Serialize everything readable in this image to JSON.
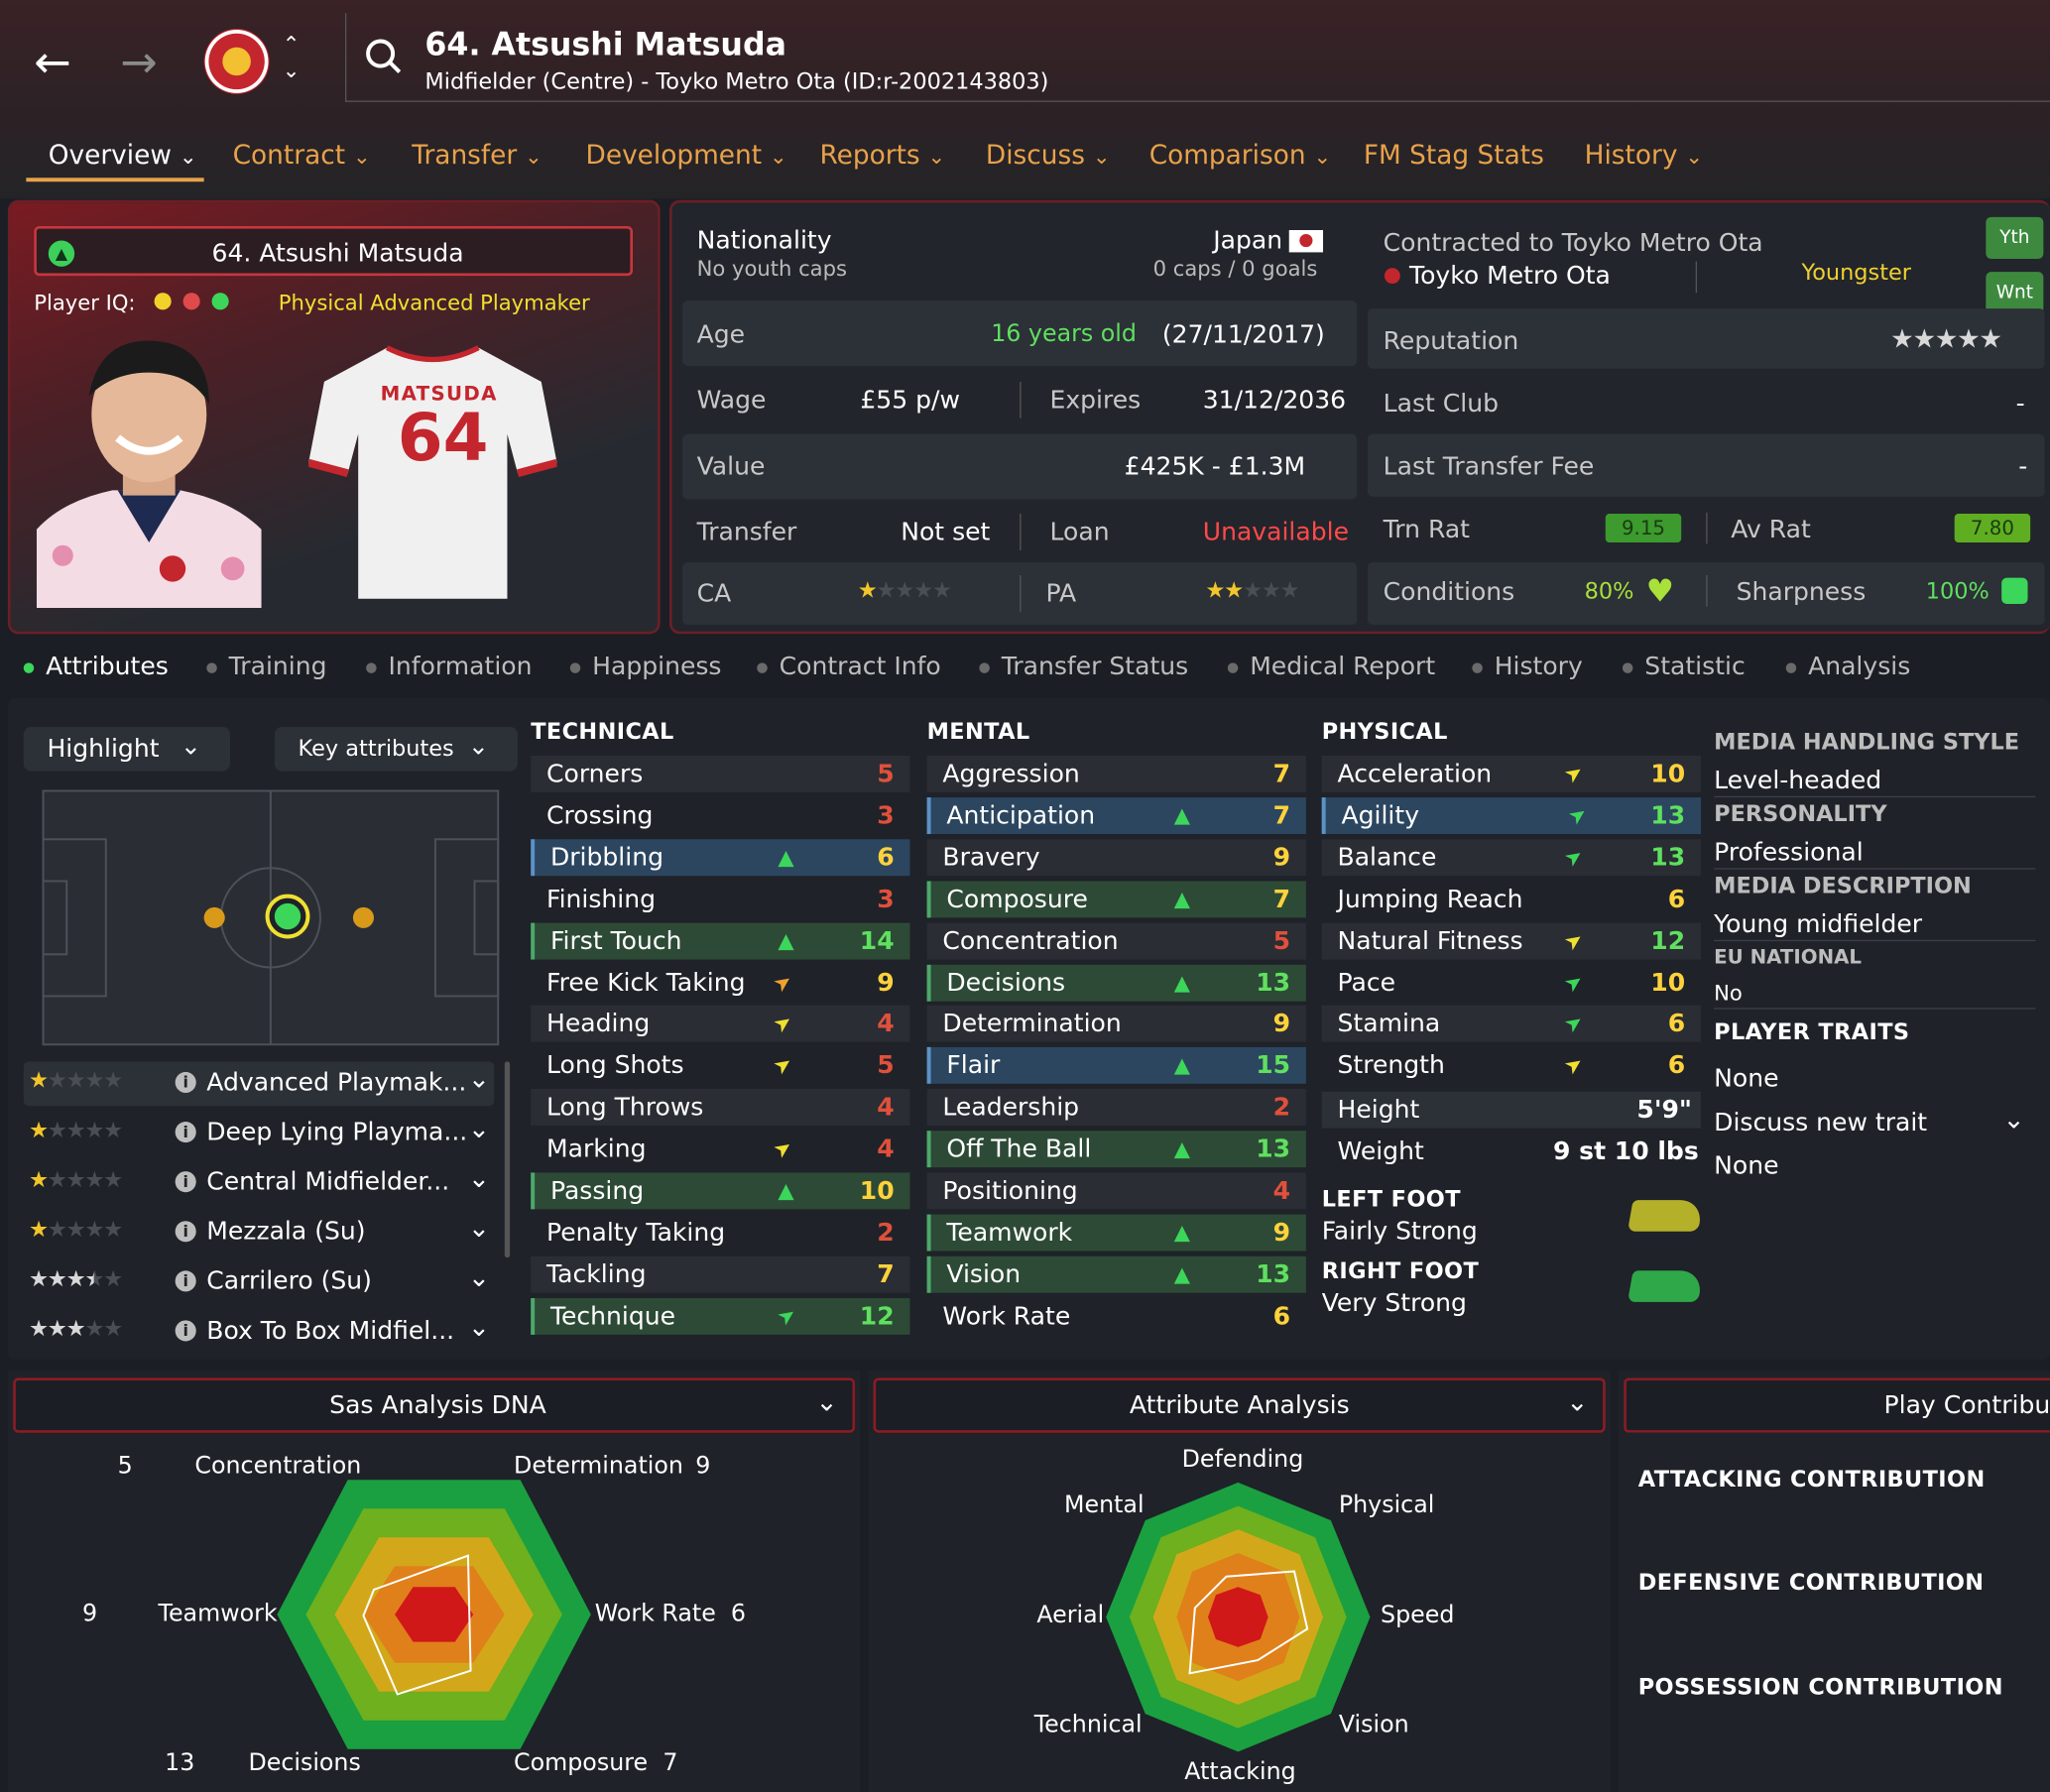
{
  "header": {
    "title": "64. Atsushi Matsuda",
    "subtitle": "Midfielder (Centre) - Toyko Metro Ota (ID:r-2002143803)"
  },
  "nav": {
    "tabs": [
      "Overview",
      "Contract",
      "Transfer",
      "Development",
      "Reports",
      "Discuss",
      "Comparison",
      "FM Stag Stats",
      "History"
    ]
  },
  "card": {
    "name": "64. Atsushi Matsuda",
    "player_iq_label": "Player IQ:",
    "role": "Physical Advanced Playmaker",
    "shirt_name": "MATSUDA",
    "shirt_number": "64"
  },
  "info": {
    "nationality_label": "Nationality",
    "nationality": "Japan",
    "youth_caps": "No youth caps",
    "caps": "0 caps / 0 goals",
    "age_label": "Age",
    "age": "16 years old",
    "dob": "(27/11/2017)",
    "wage_label": "Wage",
    "wage": "£55 p/w",
    "expires_label": "Expires",
    "expires": "31/12/2036",
    "value_label": "Value",
    "value": "£425K - £1.3M",
    "transfer_label": "Transfer",
    "transfer": "Not set",
    "loan_label": "Loan",
    "loan": "Unavailable",
    "ca_label": "CA",
    "pa_label": "PA",
    "ca_stars": 1,
    "pa_stars": 2
  },
  "club": {
    "contracted": "Contracted to Toyko Metro Ota",
    "club": "Toyko Metro Ota",
    "status": "Youngster",
    "badge_yth": "Yth",
    "badge_wnt": "Wnt",
    "reputation_label": "Reputation",
    "reputation_stars": 5,
    "last_club_label": "Last Club",
    "last_club": "-",
    "last_fee_label": "Last Transfer Fee",
    "last_fee": "-",
    "trn_rat_label": "Trn Rat",
    "trn_rat": "9.15",
    "av_rat_label": "Av Rat",
    "av_rat": "7.80",
    "conditions_label": "Conditions",
    "conditions": "80%",
    "sharpness_label": "Sharpness",
    "sharpness": "100%"
  },
  "subtabs": [
    "Attributes",
    "Training",
    "Information",
    "Happiness",
    "Contract Info",
    "Transfer Status",
    "Medical Report",
    "History",
    "Statistic",
    "Analysis"
  ],
  "controls": {
    "highlight": "Highlight",
    "key_attributes": "Key attributes"
  },
  "roles": [
    {
      "name": "Advanced Playmak...",
      "stars": 1
    },
    {
      "name": "Deep Lying Playma...",
      "stars": 1
    },
    {
      "name": "Central Midfielder...",
      "stars": 1
    },
    {
      "name": "Mezzala (Su)",
      "stars": 1
    },
    {
      "name": "Carrilero (Su)",
      "stars": 3.5
    },
    {
      "name": "Box To Box Midfiel...",
      "stars": 3
    }
  ],
  "technical": {
    "title": "TECHNICAL",
    "items": [
      {
        "n": "Corners",
        "v": "5",
        "c": "#e0503c",
        "h": ""
      },
      {
        "n": "Crossing",
        "v": "3",
        "c": "#e0503c",
        "h": ""
      },
      {
        "n": "Dribbling",
        "v": "6",
        "c": "#ffd23c",
        "h": "b",
        "a": "up"
      },
      {
        "n": "Finishing",
        "v": "3",
        "c": "#e0503c",
        "h": ""
      },
      {
        "n": "First Touch",
        "v": "14",
        "c": "#5fe05f",
        "h": "k",
        "a": "up"
      },
      {
        "n": "Free Kick Taking",
        "v": "9",
        "c": "#ffd23c",
        "h": "",
        "a": "ur-o"
      },
      {
        "n": "Heading",
        "v": "4",
        "c": "#e0503c",
        "h": "",
        "a": "ur-y"
      },
      {
        "n": "Long Shots",
        "v": "5",
        "c": "#e0503c",
        "h": "",
        "a": "ur-y"
      },
      {
        "n": "Long Throws",
        "v": "4",
        "c": "#e0503c",
        "h": ""
      },
      {
        "n": "Marking",
        "v": "4",
        "c": "#e0503c",
        "h": "",
        "a": "ur-y"
      },
      {
        "n": "Passing",
        "v": "10",
        "c": "#ffd23c",
        "h": "k",
        "a": "up"
      },
      {
        "n": "Penalty Taking",
        "v": "2",
        "c": "#e0503c",
        "h": ""
      },
      {
        "n": "Tackling",
        "v": "7",
        "c": "#ffd23c",
        "h": ""
      },
      {
        "n": "Technique",
        "v": "12",
        "c": "#5fe05f",
        "h": "k",
        "a": "ur-g"
      }
    ]
  },
  "mental": {
    "title": "MENTAL",
    "items": [
      {
        "n": "Aggression",
        "v": "7",
        "c": "#ffd23c",
        "h": ""
      },
      {
        "n": "Anticipation",
        "v": "7",
        "c": "#ffd23c",
        "h": "b",
        "a": "up"
      },
      {
        "n": "Bravery",
        "v": "9",
        "c": "#ffd23c",
        "h": ""
      },
      {
        "n": "Composure",
        "v": "7",
        "c": "#ffd23c",
        "h": "k",
        "a": "up"
      },
      {
        "n": "Concentration",
        "v": "5",
        "c": "#e0503c",
        "h": ""
      },
      {
        "n": "Decisions",
        "v": "13",
        "c": "#5fe05f",
        "h": "k",
        "a": "up"
      },
      {
        "n": "Determination",
        "v": "9",
        "c": "#ffd23c",
        "h": ""
      },
      {
        "n": "Flair",
        "v": "15",
        "c": "#5fe05f",
        "h": "b",
        "a": "up"
      },
      {
        "n": "Leadership",
        "v": "2",
        "c": "#e0503c",
        "h": ""
      },
      {
        "n": "Off The Ball",
        "v": "13",
        "c": "#5fe05f",
        "h": "k",
        "a": "up"
      },
      {
        "n": "Positioning",
        "v": "4",
        "c": "#e0503c",
        "h": ""
      },
      {
        "n": "Teamwork",
        "v": "9",
        "c": "#ffd23c",
        "h": "k",
        "a": "up"
      },
      {
        "n": "Vision",
        "v": "13",
        "c": "#5fe05f",
        "h": "k",
        "a": "up"
      },
      {
        "n": "Work Rate",
        "v": "6",
        "c": "#ffd23c",
        "h": ""
      }
    ]
  },
  "physical": {
    "title": "PHYSICAL",
    "items": [
      {
        "n": "Acceleration",
        "v": "10",
        "c": "#ffd23c",
        "h": "",
        "a": "ur-y"
      },
      {
        "n": "Agility",
        "v": "13",
        "c": "#5fe05f",
        "h": "b",
        "a": "ur-g"
      },
      {
        "n": "Balance",
        "v": "13",
        "c": "#5fe05f",
        "h": "",
        "a": "ur-g"
      },
      {
        "n": "Jumping Reach",
        "v": "6",
        "c": "#ffd23c",
        "h": ""
      },
      {
        "n": "Natural Fitness",
        "v": "12",
        "c": "#5fe05f",
        "h": "",
        "a": "ur-y"
      },
      {
        "n": "Pace",
        "v": "10",
        "c": "#ffd23c",
        "h": "",
        "a": "ur-g"
      },
      {
        "n": "Stamina",
        "v": "6",
        "c": "#ffd23c",
        "h": "",
        "a": "ur-g"
      },
      {
        "n": "Strength",
        "v": "6",
        "c": "#ffd23c",
        "h": "",
        "a": "ur-y"
      }
    ],
    "height_label": "Height",
    "height": "5'9\"",
    "weight_label": "Weight",
    "weight": "9 st 10 lbs",
    "left_foot_label": "LEFT FOOT",
    "left_foot": "Fairly Strong",
    "right_foot_label": "RIGHT FOOT",
    "right_foot": "Very Strong"
  },
  "side": {
    "media_style_label": "MEDIA HANDLING STYLE",
    "media_style": "Level-headed",
    "personality_label": "PERSONALITY",
    "personality": "Professional",
    "media_desc_label": "MEDIA DESCRIPTION",
    "media_desc": "Young midfielder",
    "eu_label": "EU NATIONAL",
    "eu": "No",
    "traits_label": "PLAYER TRAITS",
    "traits": "None",
    "discuss": "Discuss new trait",
    "traits2": "None"
  },
  "sas": {
    "title": "Sas Analysis DNA",
    "labels": [
      {
        "n": "Concentration",
        "v": "5"
      },
      {
        "n": "Determination",
        "v": "9"
      },
      {
        "n": "Work Rate",
        "v": "6"
      },
      {
        "n": "Composure",
        "v": "7"
      },
      {
        "n": "Decisions",
        "v": "13"
      },
      {
        "n": "Teamwork",
        "v": "9"
      }
    ]
  },
  "aa": {
    "title": "Attribute Analysis",
    "labels": [
      "Defending",
      "Physical",
      "Speed",
      "Vision",
      "Attacking",
      "Technical",
      "Aerial",
      "Mental"
    ]
  },
  "play": {
    "title": "Play Contribut",
    "attacking": "ATTACKING CONTRIBUTION",
    "defensive": "DEFENSIVE CONTRIBUTION",
    "possession": "POSSESSION CONTRIBUTION"
  },
  "colors": {
    "accent": "#e8a24a",
    "good": "#5fe05f",
    "mid": "#ffd23c",
    "bad": "#e0503c",
    "brand": "#8a1c24"
  }
}
